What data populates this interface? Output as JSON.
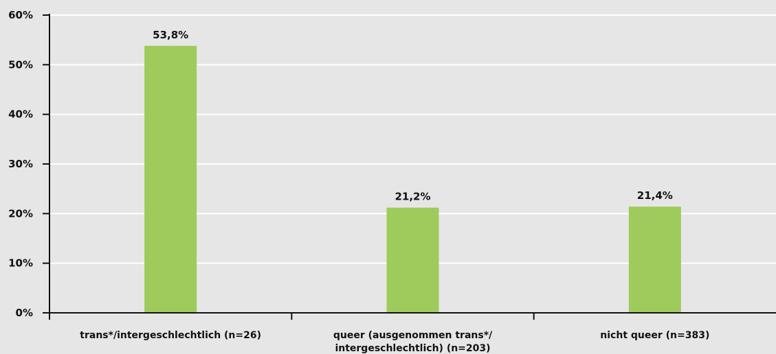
{
  "chart_data": {
    "type": "bar",
    "categories": [
      [
        "trans*/intergeschlechtlich (n=26)"
      ],
      [
        "queer (ausgenommen trans*/",
        "intergeschlechtlich) (n=203)"
      ],
      [
        "nicht queer (n=383)"
      ]
    ],
    "values": [
      53.8,
      21.2,
      21.4
    ],
    "value_labels": [
      "53,8%",
      "21,2%",
      "21,4%"
    ],
    "y_ticks": [
      0,
      10,
      20,
      30,
      40,
      50,
      60
    ],
    "y_tick_labels": [
      "0%",
      "10%",
      "20%",
      "30%",
      "40%",
      "50%",
      "60%"
    ],
    "ylim": [
      0,
      60
    ],
    "title": "",
    "xlabel": "",
    "ylabel": "",
    "grid": true,
    "colors": {
      "bar": "#9ecb5b",
      "background": "#e6e6e6",
      "grid": "#ffffff",
      "axis": "#111111"
    }
  }
}
